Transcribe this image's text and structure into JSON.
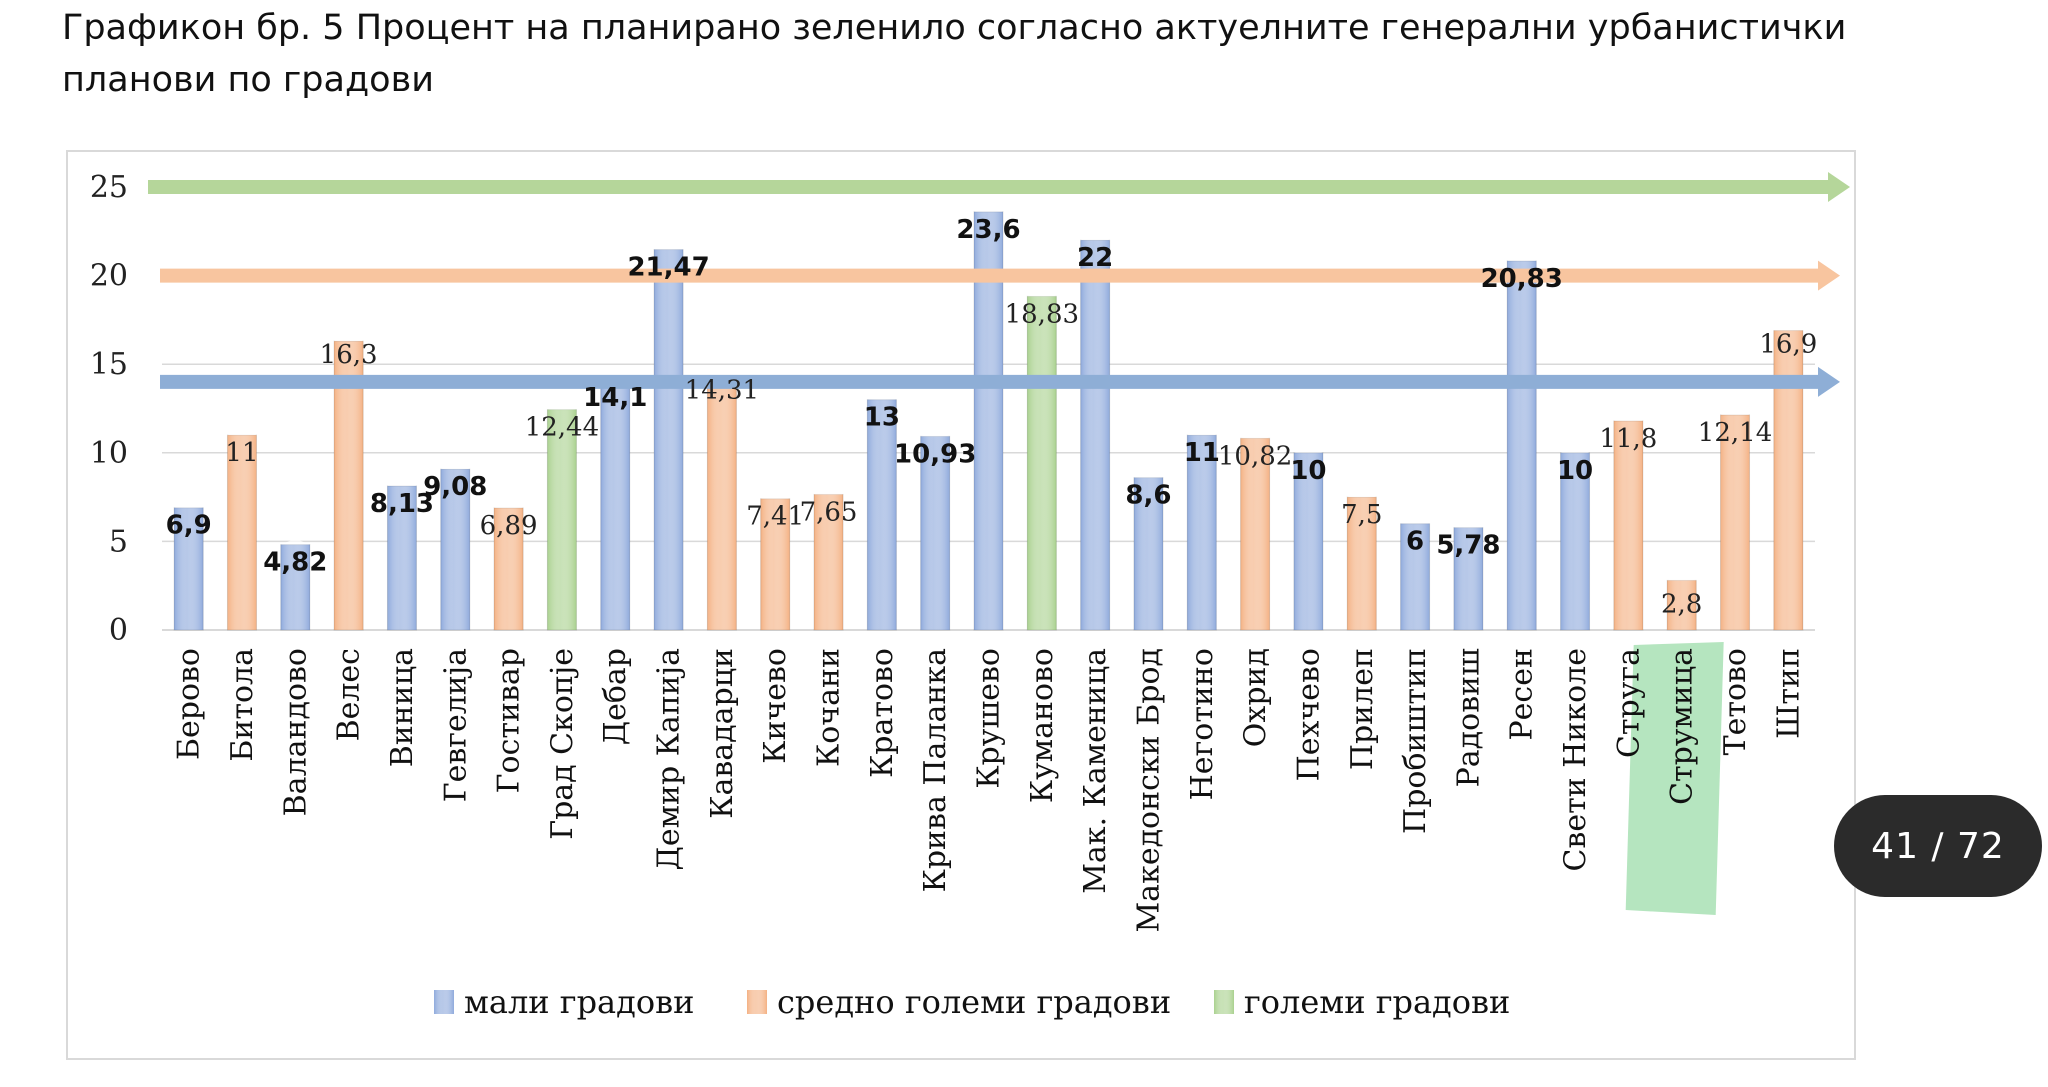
{
  "document": {
    "title": "Графикон бр.  5 Процент на планирано зеленило согласно актуелните генерални урбанистички планови по градови"
  },
  "viewer": {
    "page_counter": "41 / 72"
  },
  "colors": {
    "small_towns": "#8faadc",
    "medium_towns": "#f4b183",
    "large_towns": "#a9d18e",
    "arrow_green": "#b5d69a",
    "arrow_orange": "#f8c59f",
    "arrow_blue": "#8eaed6",
    "highlight": "#a8e0b4",
    "gridline": "#d9d9d9"
  },
  "chart_data": {
    "type": "bar",
    "categories": [
      "Берово",
      "Битола",
      "Валандово",
      "Велес",
      "Виница",
      "Гевгелија",
      "Гостивар",
      "Град Скопје",
      "Дебар",
      "Демир Капија",
      "Кавадарци",
      "Кичево",
      "Кочани",
      "Кратово",
      "Крива Паланка",
      "Крушево",
      "Куманово",
      "Мак. Каменица",
      "Македонски Брод",
      "Неготино",
      "Охрид",
      "Пехчево",
      "Прилеп",
      "Пробиштип",
      "Радовиш",
      "Ресен",
      "Свети Николе",
      "Струга",
      "Струмица",
      "Тетово",
      "Штип"
    ],
    "values": [
      6.9,
      11,
      4.82,
      16.3,
      8.13,
      9.08,
      6.89,
      12.44,
      14.1,
      21.47,
      14.31,
      7.41,
      7.65,
      13,
      10.93,
      23.6,
      18.83,
      22,
      8.6,
      11,
      10.82,
      10,
      7.5,
      6,
      5.78,
      20.83,
      10,
      11.8,
      2.8,
      12.14,
      16.9
    ],
    "data_labels": [
      "6,9",
      "11",
      "4,82",
      "16,3",
      "8,13",
      "9,08",
      "6,89",
      "12,44",
      "14,1",
      "21,47",
      "14,31",
      "7,41",
      "7,65",
      "13",
      "10,93",
      "23,6",
      "18,83",
      "22",
      "8,6",
      "11",
      "10,82",
      "10",
      "7,5",
      "6",
      "5,78",
      "20,83",
      "10",
      "11,8",
      "2,8",
      "12,14",
      "16,9"
    ],
    "groups": [
      "small",
      "medium",
      "small",
      "medium",
      "small",
      "small",
      "medium",
      "large",
      "small",
      "small",
      "medium",
      "medium",
      "medium",
      "small",
      "small",
      "small",
      "large",
      "small",
      "small",
      "small",
      "medium",
      "small",
      "medium",
      "small",
      "small",
      "small",
      "small",
      "medium",
      "medium",
      "medium",
      "medium"
    ],
    "legend": [
      {
        "key": "small",
        "label": "мали градови"
      },
      {
        "key": "medium",
        "label": "средно големи градови"
      },
      {
        "key": "large",
        "label": "големи градови"
      }
    ],
    "reference_lines": [
      {
        "group": "large",
        "value": 25
      },
      {
        "group": "medium",
        "value": 20
      },
      {
        "group": "small",
        "value": 14
      }
    ],
    "highlighted_category": "Струмица",
    "ylim": [
      0,
      25
    ],
    "yticks": [
      "0",
      "5",
      "10",
      "15",
      "20",
      "25"
    ],
    "grid": true,
    "legend_position": "bottom"
  }
}
